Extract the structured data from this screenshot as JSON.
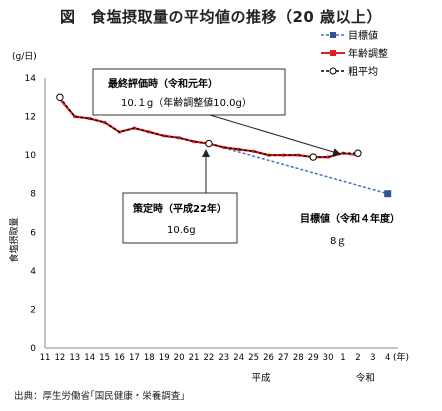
{
  "title": "図　食塩摂取量の平均値の推移（20 歳以上）",
  "source": "出典：厚生労働省｢国民健康・栄養調査｣",
  "chart_data": {
    "type": "line",
    "y_unit": "(g/日)",
    "ylabel": "食塩摂取量",
    "x_unit": "(年)",
    "ylim": [
      0,
      14
    ],
    "yticks": [
      0,
      2,
      4,
      6,
      8,
      10,
      12,
      14
    ],
    "grid": false,
    "legend_position": "top-right",
    "x_tick_labels": [
      "11",
      "12",
      "13",
      "14",
      "15",
      "16",
      "17",
      "18",
      "19",
      "20",
      "21",
      "22",
      "23",
      "24",
      "25",
      "26",
      "27",
      "28",
      "29",
      "30",
      "1",
      "2",
      "3",
      "4"
    ],
    "era_labels": [
      {
        "label": "平成",
        "center_tick": 14.5
      },
      {
        "label": "令和",
        "center_tick": 21.5
      }
    ],
    "series": [
      {
        "name": "目標値",
        "color": "#4472C4",
        "style": "dashed-square",
        "points": [
          [
            11,
            10.6
          ],
          [
            23,
            8.0
          ]
        ]
      },
      {
        "name": "年齢調整",
        "color": "#E02020",
        "style": "solid-square",
        "points": [
          [
            1,
            12.9
          ],
          [
            2,
            12.0
          ],
          [
            3,
            11.9
          ],
          [
            4,
            11.7
          ],
          [
            5,
            11.2
          ],
          [
            6,
            11.4
          ],
          [
            7,
            11.2
          ],
          [
            8,
            11.0
          ],
          [
            9,
            10.9
          ],
          [
            10,
            10.7
          ],
          [
            11,
            10.6
          ],
          [
            12,
            10.4
          ],
          [
            13,
            10.3
          ],
          [
            14,
            10.2
          ],
          [
            15,
            10.0
          ],
          [
            16,
            10.0
          ],
          [
            17,
            10.0
          ],
          [
            18,
            9.9
          ],
          [
            19,
            9.9
          ],
          [
            20,
            10.1
          ],
          [
            21,
            10.0
          ]
        ]
      },
      {
        "name": "粗平均",
        "color": "#000000",
        "style": "dashed-circle",
        "points": [
          [
            1,
            13.0
          ],
          [
            2,
            12.0
          ],
          [
            3,
            11.9
          ],
          [
            4,
            11.7
          ],
          [
            5,
            11.2
          ],
          [
            6,
            11.4
          ],
          [
            7,
            11.2
          ],
          [
            8,
            11.0
          ],
          [
            9,
            10.9
          ],
          [
            10,
            10.7
          ],
          [
            11,
            10.6
          ],
          [
            12,
            10.4
          ],
          [
            13,
            10.3
          ],
          [
            14,
            10.2
          ],
          [
            15,
            10.0
          ],
          [
            16,
            10.0
          ],
          [
            17,
            10.0
          ],
          [
            18,
            9.9
          ],
          [
            19,
            9.9
          ],
          [
            20,
            10.1
          ],
          [
            21,
            10.1
          ]
        ],
        "highlight_indices": [
          1,
          11,
          18,
          21
        ]
      }
    ],
    "annotations": [
      {
        "title": "最終評価時（令和元年）",
        "text": "10.１g（年齢調整値10.0g）",
        "boxed": true
      },
      {
        "title": "策定時（平成22年）",
        "text": "10.6g",
        "boxed": true
      },
      {
        "title": "目標値（令和４年度）",
        "text": "8ｇ",
        "boxed": false
      }
    ]
  }
}
